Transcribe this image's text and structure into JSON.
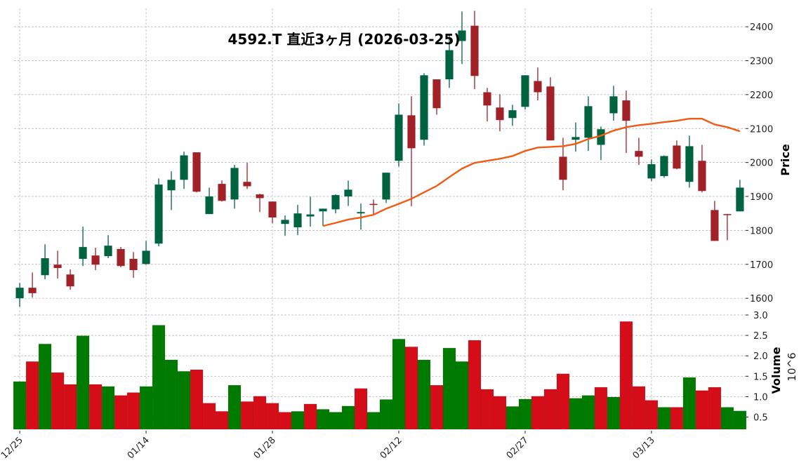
{
  "chart_data": [
    {
      "type": "candlestick",
      "title": "4592.T  直近3ヶ月  (2026-03-25)",
      "ylabel": "Price",
      "ylim": [
        1559,
        2454
      ],
      "yticks": [
        1600,
        1700,
        1800,
        1900,
        2000,
        2100,
        2200,
        2300,
        2400
      ],
      "grid": true,
      "colors": {
        "up": "#006340",
        "down": "#a02128",
        "ma": "#f05a14"
      },
      "xtick_labels": [
        {
          "index": 0,
          "label": "12/25"
        },
        {
          "index": 10,
          "label": "01/14"
        },
        {
          "index": 20,
          "label": "01/28"
        },
        {
          "index": 30,
          "label": "02/12"
        },
        {
          "index": 40,
          "label": "02/27"
        },
        {
          "index": 50,
          "label": "03/13"
        }
      ],
      "ohlc": [
        [
          1600,
          1645,
          1575,
          1631
        ],
        [
          1631,
          1676,
          1602,
          1615
        ],
        [
          1668,
          1759,
          1656,
          1718
        ],
        [
          1699,
          1740,
          1658,
          1689
        ],
        [
          1670,
          1685,
          1625,
          1635
        ],
        [
          1716,
          1811,
          1695,
          1751
        ],
        [
          1726,
          1749,
          1683,
          1699
        ],
        [
          1724,
          1786,
          1718,
          1755
        ],
        [
          1745,
          1751,
          1691,
          1695
        ],
        [
          1716,
          1736,
          1660,
          1683
        ],
        [
          1701,
          1769,
          1699,
          1740
        ],
        [
          1761,
          1953,
          1753,
          1935
        ],
        [
          1918,
          1974,
          1860,
          1949
        ],
        [
          1949,
          2032,
          1922,
          2021
        ],
        [
          2030,
          2030,
          1912,
          1914
        ],
        [
          1848,
          1926,
          1848,
          1900
        ],
        [
          1937,
          1947,
          1885,
          1887
        ],
        [
          1891,
          1993,
          1864,
          1984
        ],
        [
          1943,
          1999,
          1922,
          1930
        ],
        [
          1906,
          1908,
          1854,
          1895
        ],
        [
          1885,
          1885,
          1821,
          1838
        ],
        [
          1819,
          1844,
          1784,
          1831
        ],
        [
          1809,
          1875,
          1786,
          1850
        ],
        [
          1841,
          1899,
          1811,
          1847
        ],
        [
          1856,
          1864,
          1813,
          1864
        ],
        [
          1862,
          1906,
          1850,
          1904
        ],
        [
          1900,
          1947,
          1872,
          1920
        ],
        [
          1850,
          1879,
          1802,
          1854
        ],
        [
          1878,
          1891,
          1848,
          1876
        ],
        [
          1891,
          1970,
          1881,
          1970
        ],
        [
          2005,
          2174,
          1988,
          2141
        ],
        [
          2139,
          2195,
          1871,
          2042
        ],
        [
          2067,
          2263,
          2050,
          2257
        ],
        [
          2245,
          2245,
          2141,
          2160
        ],
        [
          2245,
          2379,
          2220,
          2331
        ],
        [
          2358,
          2445,
          2290,
          2389
        ],
        [
          2403,
          2447,
          2216,
          2255
        ],
        [
          2207,
          2220,
          2121,
          2168
        ],
        [
          2162,
          2201,
          2092,
          2125
        ],
        [
          2131,
          2170,
          2108,
          2154
        ],
        [
          2164,
          2257,
          2156,
          2257
        ],
        [
          2240,
          2280,
          2183,
          2207
        ],
        [
          2224,
          2251,
          2065,
          2065
        ],
        [
          2017,
          2073,
          1918,
          1949
        ],
        [
          2067,
          2118,
          2032,
          2075
        ],
        [
          2073,
          2195,
          2034,
          2166
        ],
        [
          2052,
          2106,
          2007,
          2098
        ],
        [
          2145,
          2226,
          2123,
          2195
        ],
        [
          2183,
          2212,
          2028,
          2123
        ],
        [
          2034,
          2073,
          1993,
          2017
        ],
        [
          1953,
          2009,
          1945,
          1995
        ],
        [
          1960,
          2021,
          1955,
          2019
        ],
        [
          2050,
          2065,
          1980,
          1982
        ],
        [
          1943,
          2079,
          1926,
          2048
        ],
        [
          2005,
          2052,
          1912,
          1916
        ],
        [
          1860,
          1887,
          1769,
          1769
        ],
        [
          1848,
          1848,
          1771,
          1846
        ],
        [
          1856,
          1949,
          1856,
          1926
        ]
      ],
      "ohlc_order": [
        "open",
        "high",
        "low",
        "close"
      ],
      "ma_start_index": 24,
      "ma": [
        1813,
        1822,
        1832,
        1838,
        1846,
        1864,
        1878,
        1893,
        1912,
        1931,
        1957,
        1982,
        1999,
        2005,
        2011,
        2019,
        2034,
        2044,
        2046,
        2048,
        2055,
        2069,
        2079,
        2094,
        2104,
        2110,
        2114,
        2119,
        2123,
        2129,
        2129,
        2112,
        2104,
        2092
      ]
    },
    {
      "type": "bar",
      "ylabel": "Volume",
      "yunit": "10^6",
      "ylim": [
        0.2,
        3.0
      ],
      "yticks": [
        0.5,
        1.0,
        1.5,
        2.0,
        2.5,
        3.0
      ],
      "colors": {
        "up": "#007a00",
        "down": "#d50d18"
      },
      "values": [
        1.37,
        1.86,
        2.29,
        1.59,
        1.3,
        2.49,
        1.3,
        1.25,
        1.03,
        1.1,
        1.25,
        2.75,
        1.9,
        1.62,
        1.66,
        0.84,
        0.64,
        1.28,
        0.88,
        1.01,
        0.84,
        0.62,
        0.64,
        0.82,
        0.69,
        0.62,
        0.77,
        1.2,
        0.62,
        0.93,
        2.41,
        2.22,
        1.9,
        1.28,
        2.19,
        1.86,
        2.38,
        1.18,
        1.01,
        0.76,
        0.94,
        1.01,
        1.18,
        1.56,
        0.96,
        1.03,
        1.23,
        0.99,
        2.84,
        1.25,
        0.91,
        0.74,
        0.74,
        1.47,
        1.15,
        1.23,
        0.74,
        0.65
      ]
    }
  ]
}
